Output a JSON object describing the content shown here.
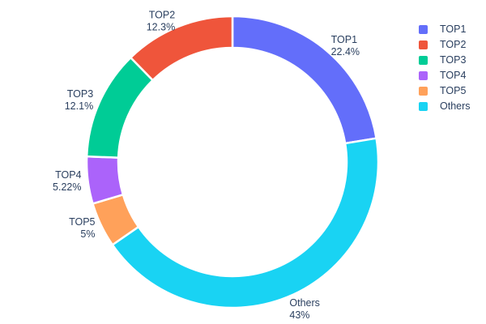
{
  "chart_data": {
    "type": "pie",
    "subtype": "donut",
    "title": "",
    "hole": 0.79,
    "legend_position": "right",
    "labels_position": "outside",
    "background_color": "#ffffff",
    "text_color": "#2a3f5f",
    "separator_color": "#ffffff",
    "slices": [
      {
        "label": "TOP1",
        "value": 22.4,
        "pct_label": "22.4%",
        "color": "#636efa"
      },
      {
        "label": "TOP2",
        "value": 12.3,
        "pct_label": "12.3%",
        "color": "#ef553b"
      },
      {
        "label": "TOP3",
        "value": 12.1,
        "pct_label": "12.1%",
        "color": "#00cc96"
      },
      {
        "label": "TOP4",
        "value": 5.22,
        "pct_label": "5.22%",
        "color": "#ab63fa"
      },
      {
        "label": "TOP5",
        "value": 5,
        "pct_label": "5%",
        "color": "#ffa15a"
      },
      {
        "label": "Others",
        "value": 43,
        "pct_label": "43%",
        "color": "#19d3f3"
      }
    ],
    "display_order_clockwise": [
      "TOP1",
      "Others",
      "TOP5",
      "TOP4",
      "TOP3",
      "TOP2"
    ]
  }
}
